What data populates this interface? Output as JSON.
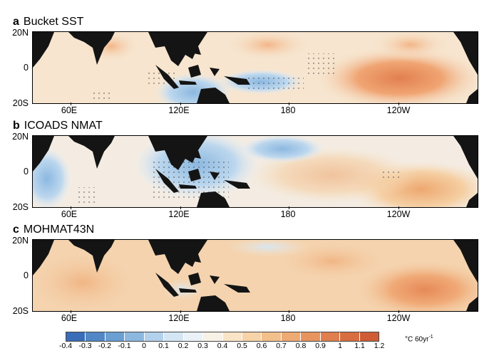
{
  "panels": [
    {
      "letter": "a",
      "title": "Bucket SST"
    },
    {
      "letter": "b",
      "title": "ICOADS NMAT"
    },
    {
      "letter": "c",
      "title": "MOHMAT43N"
    }
  ],
  "lat_labels": [
    "20N",
    "0",
    "20S"
  ],
  "lon_labels": [
    "60E",
    "120E",
    "180",
    "120W"
  ],
  "colorbar": {
    "values": [
      "-0.4",
      "-0.3",
      "-0.2",
      "-0.1",
      "0",
      "0.1",
      "0.2",
      "0.3",
      "0.4",
      "0.5",
      "0.6",
      "0.7",
      "0.8",
      "0.9",
      "1",
      "1.1",
      "1.2"
    ],
    "colors": [
      "#3a6db7",
      "#5187c6",
      "#6a9fd4",
      "#8cb8e0",
      "#b2d1ec",
      "#d4e6f4",
      "#eaf2f8",
      "#f8f1e6",
      "#f9e4c8",
      "#f7d3a7",
      "#f3bf8a",
      "#eeaa73",
      "#e8945f",
      "#e07f4d",
      "#d86d41",
      "#cf5c36"
    ],
    "units": "°C 60yr",
    "units_exp": "-1"
  },
  "colors": {
    "land": "#141414",
    "frame": "#000000"
  }
}
